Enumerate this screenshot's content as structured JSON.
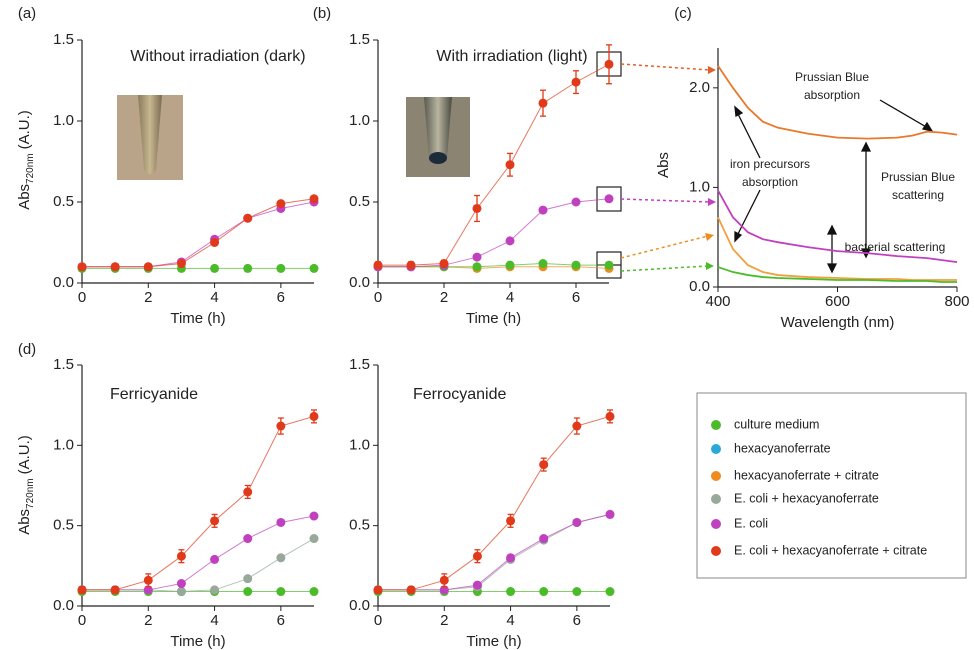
{
  "chart_data": [
    {
      "type": "line",
      "panel": "(a)",
      "title": "Without irradiation (dark)",
      "xlabel": "Time (h)",
      "ylabel": {
        "text": "Abs",
        "sub": "720nm",
        "unit": "(A.U.)"
      },
      "x": [
        0,
        1,
        2,
        3,
        4,
        5,
        6,
        7
      ],
      "xlim": [
        0,
        7
      ],
      "xticks": [
        0,
        2,
        4,
        6
      ],
      "ylim": [
        0,
        1.5
      ],
      "yticks": [
        {
          "value": 0,
          "label": "0.0"
        },
        0.5,
        {
          "value": 1,
          "label": "1.0"
        },
        1.5
      ],
      "series": [
        {
          "color": "#4cbb2a",
          "values": [
            0.09,
            0.09,
            0.09,
            0.09,
            0.09,
            0.09,
            0.09,
            0.09
          ]
        },
        {
          "color": "#c040c0",
          "values": [
            0.1,
            0.1,
            0.1,
            0.13,
            0.27,
            0.4,
            0.46,
            0.5
          ]
        },
        {
          "color": "#e03a1a",
          "values": [
            0.1,
            0.1,
            0.1,
            0.12,
            0.25,
            0.4,
            0.49,
            0.52
          ]
        }
      ]
    },
    {
      "type": "line",
      "panel": "(b)",
      "title": "With irradiation (light)",
      "xlabel": "Time (h)",
      "x": [
        0,
        1,
        2,
        3,
        4,
        5,
        6,
        7
      ],
      "xlim": [
        0,
        7
      ],
      "xticks": [
        0,
        2,
        4,
        6
      ],
      "ylim": [
        0,
        1.5
      ],
      "yticks": [
        {
          "value": 0,
          "label": "0.0"
        },
        0.5,
        {
          "value": 1,
          "label": "1.0"
        },
        1.5
      ],
      "series": [
        {
          "color": "#f08c1e",
          "values": [
            0.1,
            0.1,
            0.1,
            0.09,
            0.1,
            0.1,
            0.1,
            0.09
          ]
        },
        {
          "color": "#4cbb2a",
          "values": [
            0.1,
            0.1,
            0.1,
            0.1,
            0.11,
            0.12,
            0.11,
            0.11
          ]
        },
        {
          "color": "#c040c0",
          "values": [
            0.1,
            0.1,
            0.11,
            0.16,
            0.26,
            0.45,
            0.5,
            0.52
          ]
        },
        {
          "color": "#e03a1a",
          "values": [
            0.11,
            0.11,
            0.12,
            0.46,
            0.73,
            1.11,
            1.24,
            1.35
          ],
          "errors": [
            0.02,
            0.02,
            0.02,
            0.08,
            0.07,
            0.08,
            0.07,
            0.12
          ]
        }
      ]
    },
    {
      "type": "spectrum",
      "panel": "(c)",
      "xlabel": "Wavelength (nm)",
      "ylabel": {
        "text": "Abs"
      },
      "x": [
        400,
        425,
        450,
        475,
        500,
        550,
        600,
        650,
        700,
        725,
        750,
        775,
        800
      ],
      "xlim": [
        400,
        800
      ],
      "xticks": [
        400,
        600,
        800
      ],
      "ylim": [
        0,
        2.4
      ],
      "yticks": [
        {
          "value": 0,
          "label": "0.0"
        },
        {
          "value": 1,
          "label": "1.0"
        },
        {
          "value": 2,
          "label": "2.0"
        }
      ],
      "series": [
        {
          "color": "#e8782a",
          "values": [
            2.22,
            2.0,
            1.8,
            1.66,
            1.6,
            1.54,
            1.5,
            1.49,
            1.5,
            1.52,
            1.56,
            1.55,
            1.53
          ]
        },
        {
          "color": "#c040c0",
          "values": [
            0.97,
            0.7,
            0.55,
            0.48,
            0.45,
            0.4,
            0.36,
            0.34,
            0.31,
            0.3,
            0.29,
            0.27,
            0.25
          ]
        },
        {
          "color": "#f0a040",
          "values": [
            0.7,
            0.38,
            0.22,
            0.15,
            0.12,
            0.1,
            0.09,
            0.08,
            0.08,
            0.07,
            0.07,
            0.07,
            0.07
          ]
        },
        {
          "color": "#4cbb2a",
          "values": [
            0.2,
            0.15,
            0.12,
            0.1,
            0.09,
            0.08,
            0.07,
            0.07,
            0.06,
            0.06,
            0.06,
            0.05,
            0.05
          ]
        }
      ],
      "annotations": [
        {
          "lines": [
            "Prussian Blue",
            "absorption"
          ]
        },
        {
          "lines": [
            "iron precursors",
            "absorption"
          ]
        },
        {
          "lines": [
            "Prussian Blue",
            "scattering"
          ]
        },
        {
          "lines": [
            "bacterial scattering"
          ]
        }
      ]
    },
    {
      "type": "line",
      "panel": "(d)",
      "title": "Ferricyanide",
      "xlabel": "Time (h)",
      "ylabel": {
        "text": "Abs",
        "sub": "720nm",
        "unit": "(A.U.)"
      },
      "x": [
        0,
        1,
        2,
        3,
        4,
        5,
        6,
        7
      ],
      "xlim": [
        0,
        7
      ],
      "xticks": [
        0,
        2,
        4,
        6
      ],
      "ylim": [
        0,
        1.5
      ],
      "yticks": [
        {
          "value": 0,
          "label": "0.0"
        },
        0.5,
        {
          "value": 1,
          "label": "1.0"
        },
        1.5
      ],
      "series": [
        {
          "color": "#4cbb2a",
          "values": [
            0.09,
            0.09,
            0.09,
            0.09,
            0.09,
            0.09,
            0.09,
            0.09
          ]
        },
        {
          "color": "#98a89a",
          "values": [
            0.1,
            0.1,
            0.1,
            0.09,
            0.1,
            0.17,
            0.3,
            0.42
          ]
        },
        {
          "color": "#c040c0",
          "values": [
            0.1,
            0.1,
            0.1,
            0.14,
            0.29,
            0.42,
            0.52,
            0.56
          ]
        },
        {
          "color": "#e03a1a",
          "values": [
            0.1,
            0.1,
            0.16,
            0.31,
            0.53,
            0.71,
            1.12,
            1.18
          ],
          "errors": [
            0.02,
            0.02,
            0.04,
            0.04,
            0.04,
            0.04,
            0.05,
            0.04
          ]
        }
      ]
    },
    {
      "type": "line",
      "title": "Ferrocyanide",
      "xlabel": "Time (h)",
      "x": [
        0,
        1,
        2,
        3,
        4,
        5,
        6,
        7
      ],
      "xlim": [
        0,
        7
      ],
      "xticks": [
        0,
        2,
        4,
        6
      ],
      "ylim": [
        0,
        1.5
      ],
      "yticks": [
        {
          "value": 0,
          "label": "0.0"
        },
        0.5,
        {
          "value": 1,
          "label": "1.0"
        },
        1.5
      ],
      "series": [
        {
          "color": "#4cbb2a",
          "values": [
            0.09,
            0.09,
            0.09,
            0.09,
            0.09,
            0.09,
            0.09,
            0.09
          ]
        },
        {
          "color": "#98a89a",
          "values": [
            0.1,
            0.1,
            0.1,
            0.12,
            0.29,
            0.41,
            0.52,
            0.57
          ]
        },
        {
          "color": "#c040c0",
          "values": [
            0.1,
            0.1,
            0.1,
            0.13,
            0.3,
            0.42,
            0.52,
            0.57
          ]
        },
        {
          "color": "#e03a1a",
          "values": [
            0.1,
            0.1,
            0.16,
            0.31,
            0.53,
            0.88,
            1.12,
            1.18
          ],
          "errors": [
            0.02,
            0.02,
            0.04,
            0.04,
            0.04,
            0.04,
            0.05,
            0.04
          ]
        }
      ]
    }
  ],
  "legend": {
    "entries": [
      {
        "label": "culture medium",
        "color": "#4cbb2a"
      },
      {
        "label": "hexacyanoferrate",
        "color": "#29a9d8"
      },
      {
        "label": "hexacyanoferrate + citrate",
        "color": "#f08c1e"
      },
      {
        "label": "E. coli + hexacyanoferrate",
        "color": "#98a89a"
      },
      {
        "label": "E. coli",
        "color": "#c040c0"
      },
      {
        "label": "E. coli + hexacyanoferrate + citrate",
        "color": "#e03a1a"
      }
    ]
  }
}
